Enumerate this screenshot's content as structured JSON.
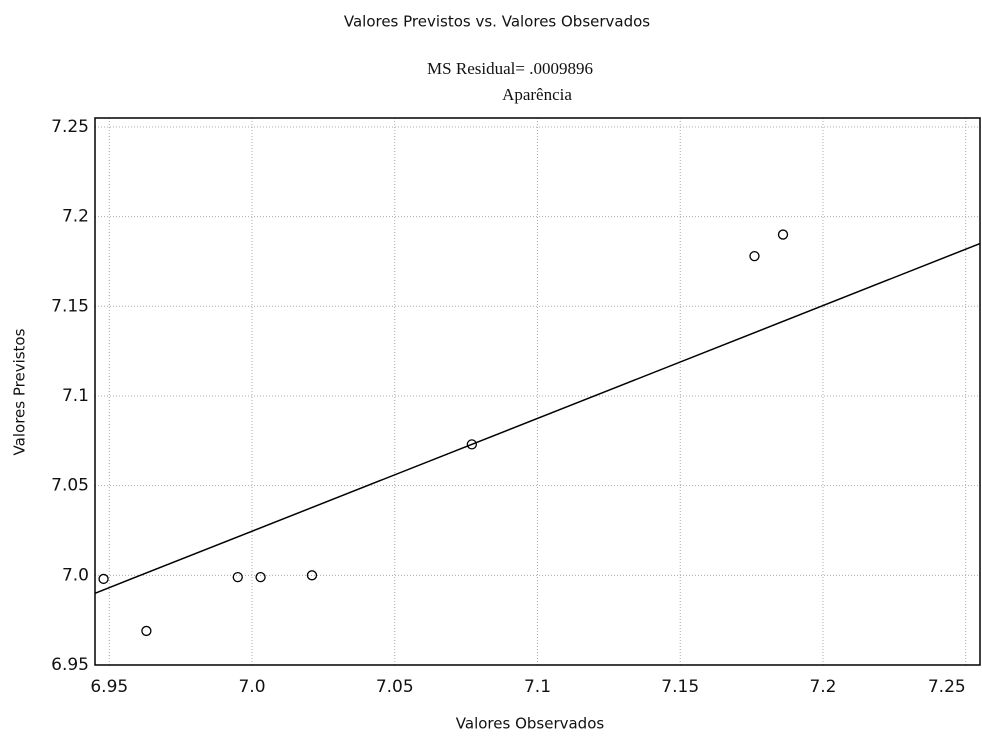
{
  "chart_data": {
    "type": "scatter",
    "title": "Valores Previstos vs. Valores Observados",
    "subtitle": "MS Residual= .0009896",
    "subtitle2": "Aparência",
    "x_label": "Valores Observados",
    "y_label": "Valores Previstos",
    "x": [
      6.948,
      6.963,
      6.995,
      7.003,
      7.021,
      7.077,
      7.176,
      7.186
    ],
    "series": [
      {
        "name": "Aparência",
        "color": "#000000",
        "values": [
          6.998,
          6.969,
          6.999,
          6.999,
          7.0,
          7.073,
          7.178,
          7.19
        ]
      }
    ],
    "fit_line": {
      "x": [
        6.945,
        7.255
      ],
      "y": [
        6.99,
        7.185
      ],
      "color": "#000000"
    },
    "xlim": [
      6.945,
      7.255
    ],
    "xticks": [
      6.95,
      {
        "value": 7,
        "label": "7.0"
      },
      7.05,
      7.1,
      7.15,
      7.2,
      7.25
    ],
    "ylim": [
      6.95,
      7.255
    ],
    "yticks": [
      6.95,
      {
        "value": 7,
        "label": "7.0"
      },
      7.05,
      7.1,
      7.15,
      7.2,
      7.25
    ],
    "grid": true
  }
}
